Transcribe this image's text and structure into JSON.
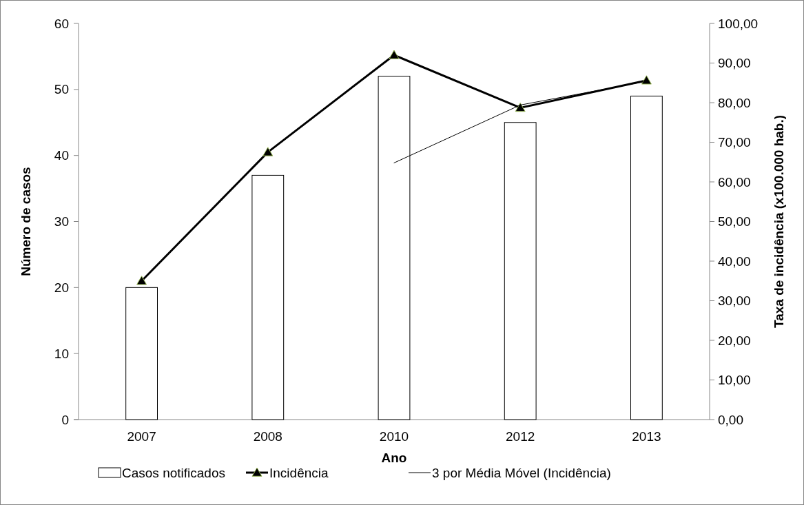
{
  "chart_data": {
    "type": "bar",
    "xlabel": "Ano",
    "ylabel": "Número de casos",
    "y2label": "Taxa de incidência (x100.000 hab.)",
    "categories": [
      "2007",
      "2008",
      "2010",
      "2012",
      "2013"
    ],
    "series": [
      {
        "name": "Casos notificados",
        "color": "#ffffff",
        "values": [
          20,
          37,
          52,
          45,
          49
        ]
      },
      {
        "name": "Incidência",
        "type": "line",
        "axis": "y2",
        "color": "#000000",
        "marker": "triangle",
        "values": [
          35.0,
          67.5,
          92.0,
          78.7,
          85.6
        ]
      },
      {
        "name": "3 por Média Móvel (Incidência)",
        "type": "line",
        "axis": "y2",
        "color": "#000000",
        "marker": "none",
        "values": [
          null,
          null,
          64.8,
          79.4,
          85.4
        ]
      }
    ],
    "ylim": [
      0,
      60
    ],
    "yticks": [
      0,
      10,
      20,
      30,
      40,
      50,
      60
    ],
    "y2lim": [
      0,
      100
    ],
    "y2ticks": [
      {
        "value": 0,
        "label": "0,00"
      },
      {
        "value": 10,
        "label": "10,00"
      },
      {
        "value": 20,
        "label": "20,00"
      },
      {
        "value": 30,
        "label": "30,00"
      },
      {
        "value": 40,
        "label": "40,00"
      },
      {
        "value": 50,
        "label": "50,00"
      },
      {
        "value": 60,
        "label": "60,00"
      },
      {
        "value": 70,
        "label": "70,00"
      },
      {
        "value": 80,
        "label": "80,00"
      },
      {
        "value": 90,
        "label": "90,00"
      },
      {
        "value": 100,
        "label": "100,00"
      }
    ],
    "grid": false,
    "legend": "bottom"
  }
}
